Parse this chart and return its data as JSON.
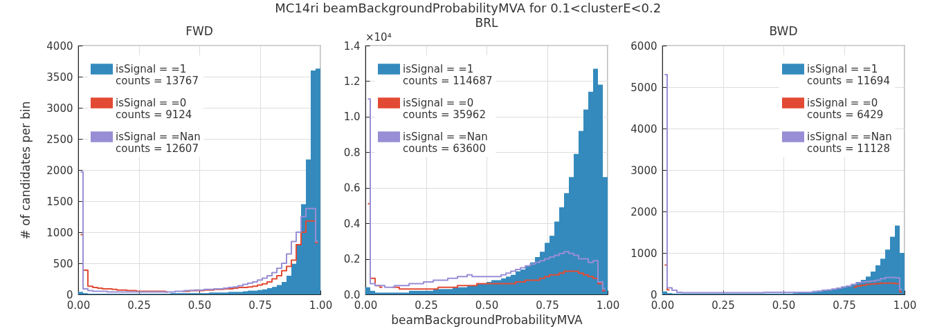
{
  "chart_data": [
    {
      "type": "histogram",
      "title": "FWD",
      "ylabel": "# of candidates per bin",
      "annotations": [
        "MC14ri beamBackgroundProbabilityMVA for 0.1<clusterE<0.2"
      ],
      "legend": "top left",
      "grid": true,
      "bins": [
        0,
        0.02,
        0.04,
        0.06,
        0.08,
        0.1,
        0.12,
        0.14,
        0.16,
        0.18,
        0.2,
        0.22,
        0.24,
        0.26,
        0.28,
        0.3,
        0.32,
        0.34,
        0.36,
        0.38,
        0.4,
        0.42,
        0.44,
        0.46,
        0.48,
        0.5,
        0.52,
        0.54,
        0.56,
        0.58,
        0.6,
        0.62,
        0.64,
        0.66,
        0.68,
        0.7,
        0.72,
        0.74,
        0.76,
        0.78,
        0.8,
        0.82,
        0.84,
        0.86,
        0.88,
        0.9,
        0.92,
        0.94,
        0.96,
        0.98,
        1
      ],
      "xlim": [
        0,
        1
      ],
      "xticks": [
        {
          "value": 0,
          "label": "0.00"
        },
        {
          "value": 0.25,
          "label": "0.25"
        },
        {
          "value": 0.5,
          "label": "0.50"
        },
        {
          "value": 0.75,
          "label": "0.75"
        },
        {
          "value": 1,
          "label": "1.00"
        }
      ],
      "ylim": [
        0,
        4000
      ],
      "yticks": [
        0,
        500,
        1000,
        1500,
        2000,
        2500,
        3000,
        3500,
        4000
      ],
      "series": [
        {
          "name": "isSignal = =1\ncounts = 13767",
          "color": "#348abd",
          "values": [
            40,
            20,
            10,
            10,
            10,
            10,
            10,
            10,
            10,
            10,
            10,
            10,
            10,
            10,
            10,
            10,
            10,
            10,
            10,
            20,
            20,
            20,
            20,
            20,
            20,
            20,
            20,
            30,
            30,
            30,
            30,
            40,
            40,
            40,
            50,
            60,
            60,
            70,
            80,
            100,
            120,
            150,
            200,
            300,
            490,
            810,
            1450,
            2170,
            3600,
            3630
          ]
        },
        {
          "name": "isSignal = =0\ncounts = 9124",
          "color": "#e24a33",
          "type": "step",
          "x": [
            0.01,
            0.03,
            0.05,
            0.07,
            0.09,
            0.11,
            0.13,
            0.15,
            0.17,
            0.19,
            0.21,
            0.23,
            0.25,
            0.27,
            0.29,
            0.31,
            0.33,
            0.35,
            0.37,
            0.39,
            0.41,
            0.43,
            0.45,
            0.47,
            0.49,
            0.51,
            0.53,
            0.55,
            0.57,
            0.59,
            0.61,
            0.63,
            0.65,
            0.67,
            0.69,
            0.71,
            0.73,
            0.75,
            0.77,
            0.79,
            0.81,
            0.83,
            0.85,
            0.87,
            0.89,
            0.91,
            0.93,
            0.95,
            0.97,
            0.99
          ],
          "values": [
            960,
            390,
            130,
            110,
            100,
            90,
            90,
            80,
            70,
            70,
            60,
            60,
            50,
            50,
            50,
            50,
            50,
            50,
            40,
            null,
            null,
            50,
            50,
            60,
            60,
            60,
            70,
            70,
            80,
            80,
            90,
            90,
            100,
            110,
            110,
            120,
            130,
            150,
            170,
            200,
            250,
            300,
            380,
            450,
            550,
            800,
            1000,
            1180,
            1180,
            830
          ]
        },
        {
          "name": "isSignal = =Nan\ncounts = 12607",
          "color": "#988ed5",
          "type": "step",
          "x": [
            0.01,
            0.03,
            0.05,
            0.07,
            0.09,
            0.11,
            0.13,
            0.15,
            0.17,
            0.19,
            0.21,
            0.23,
            0.25,
            0.27,
            0.29,
            0.31,
            0.33,
            0.35,
            0.37,
            0.39,
            0.41,
            0.43,
            0.45,
            0.47,
            0.49,
            0.51,
            0.53,
            0.55,
            0.57,
            0.59,
            0.61,
            0.63,
            0.65,
            0.67,
            0.69,
            0.71,
            0.73,
            0.75,
            0.77,
            0.79,
            0.81,
            0.83,
            0.85,
            0.87,
            0.89,
            0.91,
            0.93,
            0.95,
            0.97,
            0.99
          ],
          "values": [
            1970,
            90,
            60,
            50,
            50,
            50,
            40,
            40,
            40,
            40,
            40,
            40,
            40,
            40,
            40,
            40,
            40,
            40,
            40,
            40,
            50,
            50,
            60,
            60,
            70,
            70,
            80,
            80,
            90,
            90,
            100,
            110,
            120,
            140,
            160,
            180,
            200,
            230,
            260,
            300,
            350,
            420,
            500,
            650,
            850,
            1000,
            1250,
            1380,
            1380,
            850
          ]
        }
      ]
    },
    {
      "type": "histogram",
      "title": "BRL",
      "xlabel": "beamBackgroundProbabilityMVA",
      "annotations": [
        "×10⁴"
      ],
      "legend": "top left",
      "grid": true,
      "bins": [
        0,
        0.02,
        0.04,
        0.06,
        0.08,
        0.1,
        0.12,
        0.14,
        0.16,
        0.18,
        0.2,
        0.22,
        0.24,
        0.26,
        0.28,
        0.3,
        0.32,
        0.34,
        0.36,
        0.38,
        0.4,
        0.42,
        0.44,
        0.46,
        0.48,
        0.5,
        0.52,
        0.54,
        0.56,
        0.58,
        0.6,
        0.62,
        0.64,
        0.66,
        0.68,
        0.7,
        0.72,
        0.74,
        0.76,
        0.78,
        0.8,
        0.82,
        0.84,
        0.86,
        0.88,
        0.9,
        0.92,
        0.94,
        0.96,
        0.98,
        1
      ],
      "xlim": [
        0,
        1
      ],
      "xticks": [
        {
          "value": 0,
          "label": "0.00"
        },
        {
          "value": 0.25,
          "label": "0.25"
        },
        {
          "value": 0.5,
          "label": "0.50"
        },
        {
          "value": 0.75,
          "label": "0.75"
        },
        {
          "value": 1,
          "label": "1.00"
        }
      ],
      "ylim": [
        0,
        1.4
      ],
      "yticks": [
        {
          "value": 0,
          "label": "0.0"
        },
        0.2,
        0.4,
        0.6,
        0.8,
        {
          "value": 1,
          "label": "1.0"
        },
        1.2,
        1.4
      ],
      "series": [
        {
          "name": "isSignal = =1\ncounts = 114687",
          "color": "#348abd",
          "values": [
            0.04,
            0.02,
            0.01,
            0.01,
            0.01,
            0.01,
            0.01,
            0.01,
            0.01,
            0.02,
            0.02,
            0.02,
            0.02,
            0.02,
            0.03,
            0.03,
            0.03,
            0.03,
            0.04,
            0.04,
            0.04,
            0.05,
            0.05,
            0.06,
            0.06,
            0.07,
            0.08,
            0.08,
            0.09,
            0.1,
            0.11,
            0.13,
            0.14,
            0.16,
            0.18,
            0.21,
            0.24,
            0.29,
            0.33,
            0.41,
            0.49,
            0.57,
            0.66,
            0.79,
            0.92,
            1.04,
            1.14,
            1.27,
            1.18,
            0.66
          ]
        },
        {
          "name": "isSignal = =0\ncounts = 35962",
          "color": "#e24a33",
          "type": "step",
          "x": [
            0.01,
            0.03,
            0.05,
            0.07,
            0.09,
            0.11,
            0.13,
            0.15,
            0.17,
            0.19,
            0.21,
            0.23,
            0.25,
            0.27,
            0.29,
            0.31,
            0.33,
            0.35,
            0.37,
            0.39,
            0.41,
            0.43,
            0.45,
            0.47,
            0.49,
            0.51,
            0.53,
            0.55,
            0.57,
            0.59,
            0.61,
            0.63,
            0.65,
            0.67,
            0.69,
            0.71,
            0.73,
            0.75,
            0.77,
            0.79,
            0.81,
            0.83,
            0.85,
            0.87,
            0.89,
            0.91,
            0.93,
            0.95,
            0.97,
            0.99
          ],
          "values": [
            0.51,
            0.09,
            0.05,
            0.04,
            null,
            0.04,
            0.04,
            0.03,
            0.03,
            0.03,
            0.03,
            0.03,
            0.03,
            0.03,
            0.03,
            0.04,
            0.04,
            0.04,
            0.04,
            0.05,
            0.05,
            0.05,
            0.05,
            0.06,
            0.06,
            0.06,
            0.06,
            0.06,
            0.06,
            0.06,
            0.06,
            0.07,
            0.07,
            0.08,
            0.08,
            0.08,
            0.09,
            0.1,
            0.11,
            0.11,
            0.12,
            0.13,
            0.13,
            0.13,
            0.12,
            0.11,
            0.1,
            0.09,
            0.06,
            0.02
          ]
        },
        {
          "name": "isSignal = =Nan\ncounts = 63600",
          "color": "#988ed5",
          "type": "step",
          "x": [
            0.01,
            0.03,
            0.05,
            0.07,
            0.09,
            0.11,
            0.13,
            0.15,
            0.17,
            0.19,
            0.21,
            0.23,
            0.25,
            0.27,
            0.29,
            0.31,
            0.33,
            0.35,
            0.37,
            0.39,
            0.41,
            0.43,
            0.45,
            0.47,
            0.49,
            0.51,
            0.53,
            0.55,
            0.57,
            0.59,
            0.61,
            0.63,
            0.65,
            0.67,
            0.69,
            0.71,
            0.73,
            0.75,
            0.77,
            0.79,
            0.81,
            0.83,
            0.85,
            0.87,
            0.89,
            0.91,
            0.93,
            0.95,
            0.97,
            0.99
          ],
          "values": [
            1.1,
            0.06,
            0.05,
            0.05,
            0.04,
            0.04,
            0.05,
            0.05,
            0.05,
            0.06,
            0.06,
            0.06,
            0.07,
            0.07,
            0.08,
            0.08,
            0.08,
            0.09,
            0.09,
            0.1,
            0.1,
            0.11,
            0.1,
            0.1,
            0.1,
            0.1,
            0.1,
            0.1,
            0.11,
            0.12,
            0.13,
            0.14,
            0.15,
            0.16,
            0.17,
            0.18,
            0.19,
            0.2,
            0.21,
            0.22,
            0.23,
            0.24,
            0.23,
            0.22,
            0.2,
            0.2,
            0.18,
            0.19,
            0.07,
            0.03
          ]
        }
      ]
    },
    {
      "type": "histogram",
      "title": "BWD",
      "legend": "top right",
      "grid": true,
      "bins": [
        0,
        0.02,
        0.04,
        0.06,
        0.08,
        0.1,
        0.12,
        0.14,
        0.16,
        0.18,
        0.2,
        0.22,
        0.24,
        0.26,
        0.28,
        0.3,
        0.32,
        0.34,
        0.36,
        0.38,
        0.4,
        0.42,
        0.44,
        0.46,
        0.48,
        0.5,
        0.52,
        0.54,
        0.56,
        0.58,
        0.6,
        0.62,
        0.64,
        0.66,
        0.68,
        0.7,
        0.72,
        0.74,
        0.76,
        0.78,
        0.8,
        0.82,
        0.84,
        0.86,
        0.88,
        0.9,
        0.92,
        0.94,
        0.96,
        0.98,
        1
      ],
      "xlim": [
        0,
        1
      ],
      "xticks": [
        {
          "value": 0,
          "label": "0.00"
        },
        {
          "value": 0.25,
          "label": "0.25"
        },
        {
          "value": 0.5,
          "label": "0.50"
        },
        {
          "value": 0.75,
          "label": "0.75"
        },
        {
          "value": 1,
          "label": "1.00"
        }
      ],
      "ylim": [
        0,
        6000
      ],
      "yticks": [
        0,
        1000,
        2000,
        3000,
        4000,
        5000,
        6000
      ],
      "series": [
        {
          "name": "isSignal = =1\ncounts = 11694",
          "color": "#348abd",
          "values": [
            70,
            30,
            20,
            20,
            20,
            20,
            20,
            20,
            20,
            20,
            20,
            20,
            20,
            20,
            20,
            20,
            20,
            20,
            20,
            20,
            20,
            20,
            20,
            20,
            20,
            20,
            20,
            30,
            40,
            40,
            50,
            60,
            80,
            100,
            110,
            130,
            150,
            170,
            200,
            250,
            300,
            350,
            430,
            550,
            700,
            860,
            1080,
            1390,
            1660,
            1000
          ]
        },
        {
          "name": "isSignal = =0\ncounts = 6429",
          "color": "#e24a33",
          "type": "step",
          "x": [
            0.01,
            0.03,
            0.05,
            0.07,
            0.09,
            0.11,
            0.13,
            0.15,
            0.17,
            0.19,
            0.21,
            0.23,
            0.25,
            0.27,
            0.29,
            0.31,
            0.33,
            0.35,
            0.37,
            0.39,
            0.41,
            0.43,
            0.45,
            0.47,
            0.49,
            0.51,
            0.53,
            0.55,
            0.57,
            0.59,
            0.61,
            0.63,
            0.65,
            0.67,
            0.69,
            0.71,
            0.73,
            0.75,
            0.77,
            0.79,
            0.81,
            0.83,
            0.85,
            0.87,
            0.89,
            0.91,
            0.93,
            0.95,
            0.97,
            0.99
          ],
          "values": [
            710,
            110,
            null,
            null,
            null,
            null,
            null,
            null,
            null,
            null,
            null,
            null,
            null,
            null,
            null,
            null,
            null,
            null,
            null,
            null,
            null,
            null,
            null,
            null,
            null,
            null,
            null,
            null,
            null,
            null,
            null,
            null,
            null,
            null,
            null,
            null,
            null,
            null,
            null,
            170,
            200,
            220,
            240,
            250,
            260,
            270,
            270,
            270,
            260,
            60
          ]
        },
        {
          "name": "isSignal = =Nan\ncounts = 11128",
          "color": "#988ed5",
          "type": "step",
          "x": [
            0.01,
            0.03,
            0.05,
            0.07,
            0.09,
            0.11,
            0.13,
            0.15,
            0.17,
            0.19,
            0.21,
            0.23,
            0.25,
            0.27,
            0.29,
            0.31,
            0.33,
            0.35,
            0.37,
            0.39,
            0.41,
            0.43,
            0.45,
            0.47,
            0.49,
            0.51,
            0.53,
            0.55,
            0.57,
            0.59,
            0.61,
            0.63,
            0.65,
            0.67,
            0.69,
            0.71,
            0.73,
            0.75,
            0.77,
            0.79,
            0.81,
            0.83,
            0.85,
            0.87,
            0.89,
            0.91,
            0.93,
            0.95,
            0.97,
            0.99
          ],
          "values": [
            5300,
            160,
            100,
            50,
            40,
            40,
            40,
            40,
            40,
            40,
            40,
            40,
            40,
            40,
            40,
            40,
            40,
            40,
            40,
            40,
            40,
            50,
            50,
            50,
            50,
            50,
            50,
            50,
            50,
            50,
            50,
            70,
            80,
            100,
            110,
            130,
            150,
            180,
            200,
            240,
            280,
            300,
            310,
            320,
            340,
            380,
            410,
            410,
            400,
            120
          ]
        }
      ]
    }
  ]
}
